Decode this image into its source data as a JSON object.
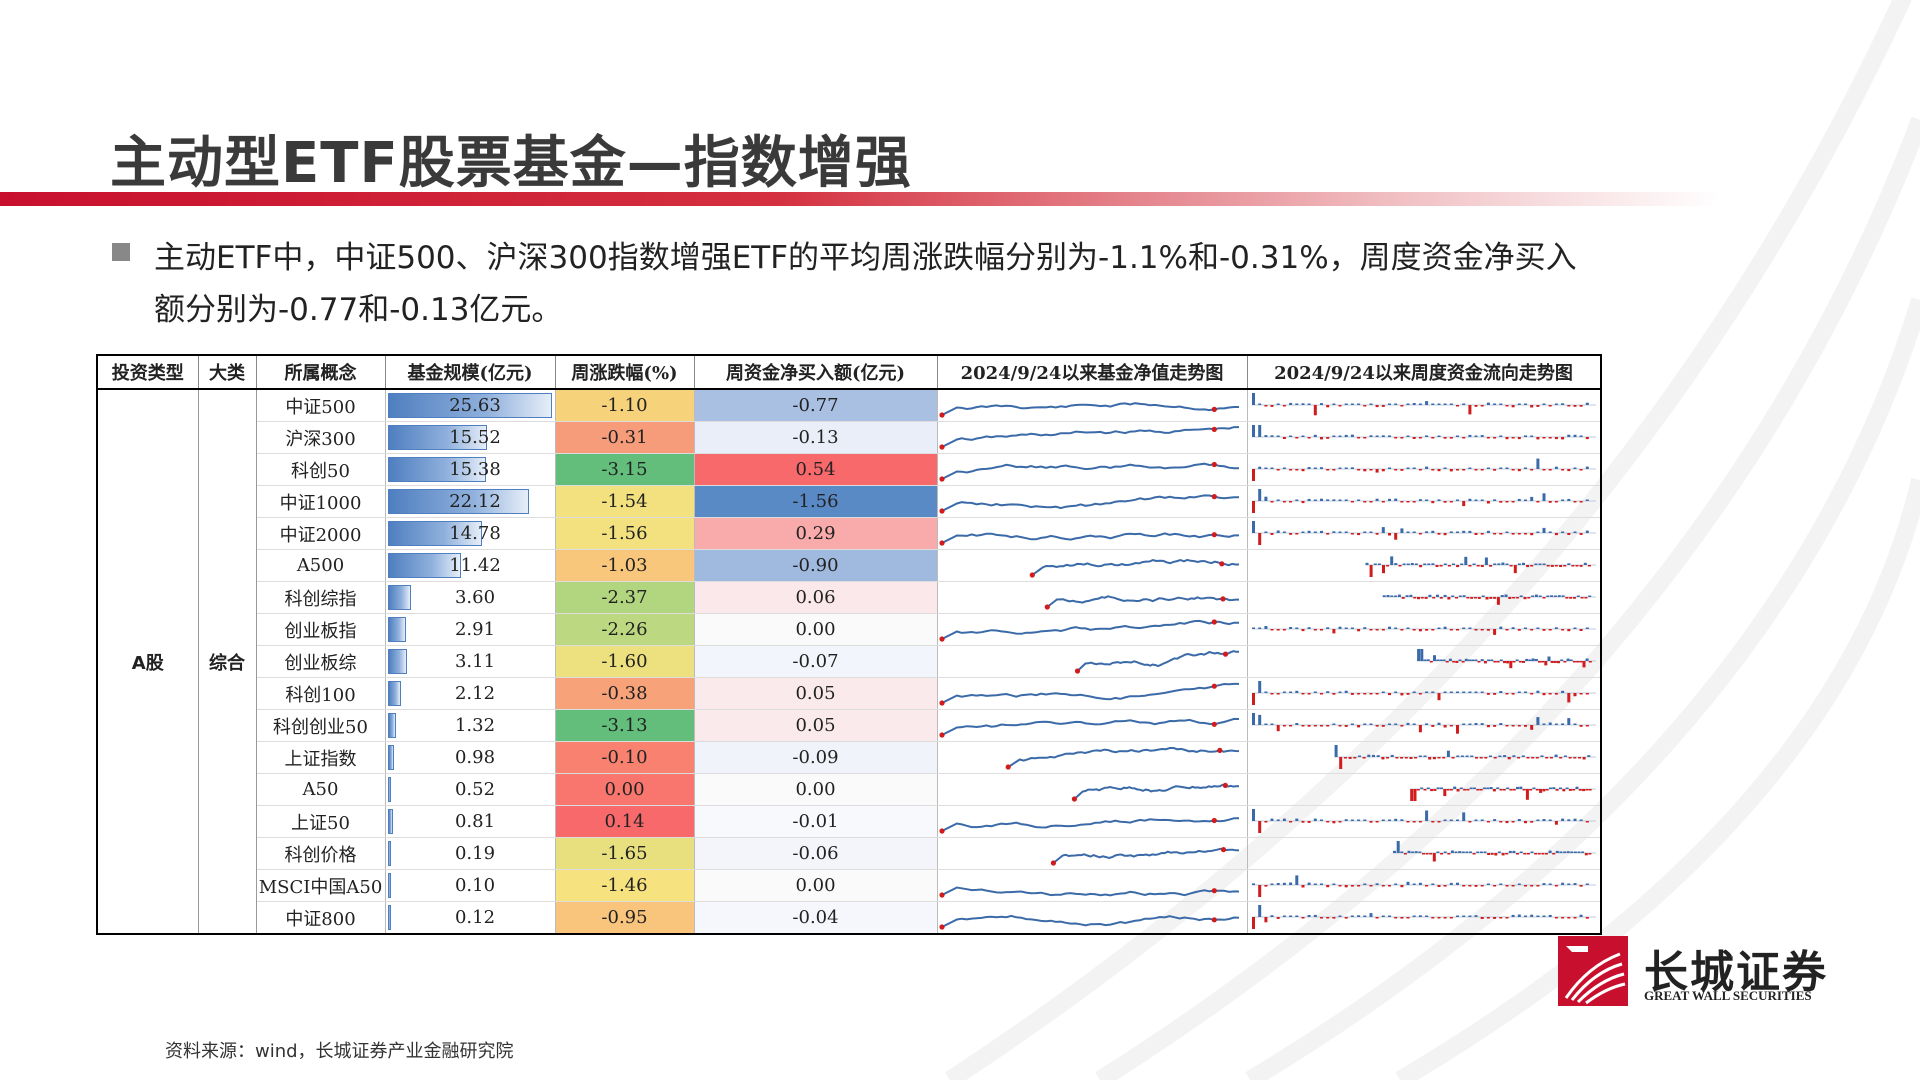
{
  "title": "主动型ETF股票基金—指数增强",
  "summary": "主动ETF中，中证500、沪深300指数增强ETF的平均周涨跌幅分别为-1.1%和-0.31%，周度资金净买入额分别为-0.77和-0.13亿元。",
  "table": {
    "headers": [
      "投资类型",
      "大类",
      "所属概念",
      "基金规模(亿元)",
      "周涨跌幅(%)",
      "周资金净买入额(亿元)",
      "2024/9/24以来基金净值走势图",
      "2024/9/24以来周度资金流向走势图"
    ],
    "invest_type": "A股",
    "category": "综合",
    "rows": [
      {
        "concept": "中证500",
        "scale": "25.63",
        "scale_num": 25.63,
        "ret": "-1.10",
        "ret_color": "#f6d27b",
        "flow": "-0.77",
        "flow_color": "#a9c0e2"
      },
      {
        "concept": "沪深300",
        "scale": "15.52",
        "scale_num": 15.52,
        "ret": "-0.31",
        "ret_color": "#f79c7a",
        "flow": "-0.13",
        "flow_color": "#e9eef8"
      },
      {
        "concept": "科创50",
        "scale": "15.38",
        "scale_num": 15.38,
        "ret": "-3.15",
        "ret_color": "#63be7b",
        "flow": "0.54",
        "flow_color": "#f8696b"
      },
      {
        "concept": "中证1000",
        "scale": "22.12",
        "scale_num": 22.12,
        "ret": "-1.54",
        "ret_color": "#f2e17e",
        "flow": "-1.56",
        "flow_color": "#5a8ac6"
      },
      {
        "concept": "中证2000",
        "scale": "14.78",
        "scale_num": 14.78,
        "ret": "-1.56",
        "ret_color": "#f2e17e",
        "flow": "0.29",
        "flow_color": "#f9abac"
      },
      {
        "concept": "A500",
        "scale": "11.42",
        "scale_num": 11.42,
        "ret": "-1.03",
        "ret_color": "#f8c77c",
        "flow": "-0.90",
        "flow_color": "#9fb9df"
      },
      {
        "concept": "科创综指",
        "scale": "3.60",
        "scale_num": 3.6,
        "ret": "-2.37",
        "ret_color": "#b2d67f",
        "flow": "0.06",
        "flow_color": "#fbe8ea"
      },
      {
        "concept": "创业板指",
        "scale": "2.91",
        "scale_num": 2.91,
        "ret": "-2.26",
        "ret_color": "#bcd880",
        "flow": "0.00",
        "flow_color": "#fafafb"
      },
      {
        "concept": "创业板综",
        "scale": "3.11",
        "scale_num": 3.11,
        "ret": "-1.60",
        "ret_color": "#ece07f",
        "flow": "-0.07",
        "flow_color": "#f2f5fb"
      },
      {
        "concept": "科创100",
        "scale": "2.12",
        "scale_num": 2.12,
        "ret": "-0.38",
        "ret_color": "#f8a27a",
        "flow": "0.05",
        "flow_color": "#fbeaec"
      },
      {
        "concept": "科创创业50",
        "scale": "1.32",
        "scale_num": 1.32,
        "ret": "-3.13",
        "ret_color": "#63be7b",
        "flow": "0.05",
        "flow_color": "#fbeaec"
      },
      {
        "concept": "上证指数",
        "scale": "0.98",
        "scale_num": 0.98,
        "ret": "-0.10",
        "ret_color": "#f8826f",
        "flow": "-0.09",
        "flow_color": "#f0f3fa"
      },
      {
        "concept": "A50",
        "scale": "0.52",
        "scale_num": 0.52,
        "ret": "0.00",
        "ret_color": "#f8766d",
        "flow": "0.00",
        "flow_color": "#fafafb"
      },
      {
        "concept": "上证50",
        "scale": "0.81",
        "scale_num": 0.81,
        "ret": "0.14",
        "ret_color": "#f8696b",
        "flow": "-0.01",
        "flow_color": "#f8f9fc"
      },
      {
        "concept": "科创价格",
        "scale": "0.19",
        "scale_num": 0.19,
        "ret": "-1.65",
        "ret_color": "#e8df7f",
        "flow": "-0.06",
        "flow_color": "#f3f5fb"
      },
      {
        "concept": "MSCI中国A50",
        "scale": "0.10",
        "scale_num": 0.1,
        "ret": "-1.46",
        "ret_color": "#f6e27e",
        "flow": "0.00",
        "flow_color": "#fafafb"
      },
      {
        "concept": "中证800",
        "scale": "0.12",
        "scale_num": 0.12,
        "ret": "-0.95",
        "ret_color": "#f9c47c",
        "flow": "-0.04",
        "flow_color": "#f5f7fc"
      }
    ]
  },
  "colors": {
    "brand_red": "#c8102e",
    "line_blue": "#3b6aa8",
    "flow_red": "#d01c1c",
    "flow_blue": "#3b6aa8"
  },
  "logo": {
    "cn": "长城证券",
    "en": "GREAT WALL SECURITIES"
  },
  "source": "资料来源：wind，长城证券产业金融研究院"
}
